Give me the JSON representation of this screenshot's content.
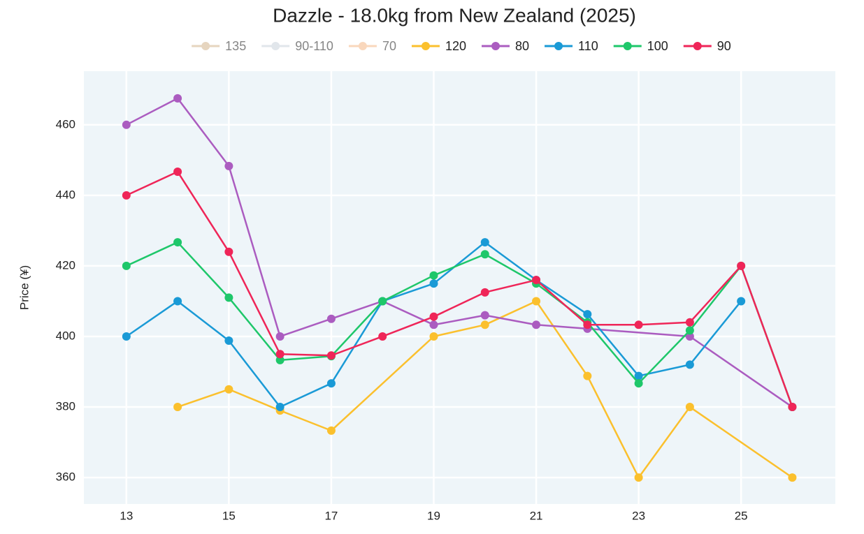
{
  "chart_data": {
    "type": "line",
    "title": "Dazzle - 18.0kg from New Zealand (2025)",
    "y_label": "Price (¥)",
    "xlim": [
      12.17,
      26.84
    ],
    "xticks": [
      13,
      15,
      17,
      19,
      21,
      23,
      25
    ],
    "ylim": [
      352.5,
      475.2
    ],
    "yticks": [
      360,
      380,
      400,
      420,
      440,
      460
    ],
    "grid": true,
    "series": [
      {
        "name": "135",
        "color": "#d2b48c",
        "visible": "legendonly",
        "x": [],
        "values": []
      },
      {
        "name": "90-110",
        "color": "#c9d3dc",
        "visible": "legendonly",
        "x": [],
        "values": []
      },
      {
        "name": "70",
        "color": "#f5b887",
        "visible": "legendonly",
        "x": [],
        "values": []
      },
      {
        "name": "120",
        "color": "#fbc02d",
        "x": [
          14,
          15,
          16,
          17,
          19,
          20,
          21,
          22,
          23,
          24,
          26
        ],
        "values": [
          380,
          385,
          379,
          373.3,
          400,
          403.3,
          410,
          388.8,
          360,
          380,
          360
        ]
      },
      {
        "name": "80",
        "color": "#ab5cc0",
        "x": [
          13,
          14,
          15,
          16,
          17,
          18,
          19,
          20,
          21,
          22,
          24,
          26
        ],
        "values": [
          460,
          467.5,
          448.3,
          400,
          405,
          410,
          403.3,
          406,
          403.3,
          402.2,
          400,
          380
        ]
      },
      {
        "name": "110",
        "color": "#1a9ad6",
        "x": [
          13,
          14,
          15,
          16,
          17,
          18,
          19,
          20,
          21,
          22,
          23,
          24,
          25
        ],
        "values": [
          400,
          410,
          398.8,
          380,
          386.7,
          410,
          415,
          426.7,
          416,
          406.3,
          388.8,
          392,
          410
        ]
      },
      {
        "name": "100",
        "color": "#1ec76a",
        "x": [
          13,
          14,
          15,
          16,
          17,
          18,
          19,
          20,
          21,
          22,
          23,
          24,
          25,
          26
        ],
        "values": [
          420,
          426.7,
          411,
          393.3,
          394.4,
          410,
          417.3,
          423.3,
          415,
          404,
          386.7,
          401.7,
          420,
          380
        ]
      },
      {
        "name": "90",
        "color": "#ef2558",
        "x": [
          13,
          14,
          15,
          16,
          17,
          18,
          19,
          20,
          21,
          22,
          23,
          24,
          25,
          26
        ],
        "values": [
          440,
          446.7,
          424,
          395,
          394.6,
          400,
          405.6,
          412.5,
          416,
          403.3,
          403.3,
          404,
          420,
          380
        ]
      }
    ]
  }
}
